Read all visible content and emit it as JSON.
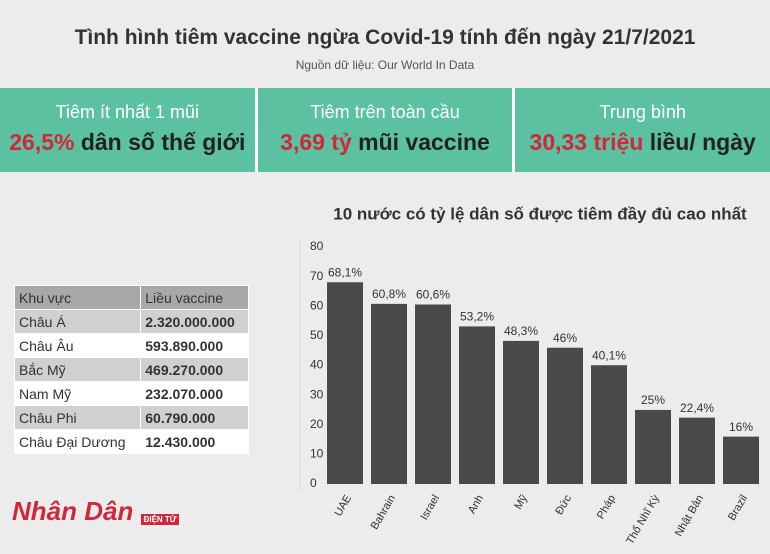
{
  "header": {
    "title": "Tình hình tiêm vaccine ngừa Covid-19 tính đến ngày 21/7/2021",
    "source": "Nguồn dữ liệu: Our World In Data"
  },
  "stats": [
    {
      "label": "Tiêm ít nhất 1 mũi",
      "highlight": "26,5%",
      "text": "dân số thế giới"
    },
    {
      "label": "Tiêm trên toàn cầu",
      "highlight": "3,69 tỷ",
      "text": "mũi vaccine"
    },
    {
      "label": "Trung bình",
      "highlight": "30,33 triệu",
      "text": "liều/ ngày"
    }
  ],
  "table": {
    "header": [
      "Khu vực",
      "Liều vaccine"
    ],
    "rows": [
      [
        "Châu Á",
        "2.320.000.000"
      ],
      [
        "Châu Âu",
        "593.890.000"
      ],
      [
        "Bắc Mỹ",
        "469.270.000"
      ],
      [
        "Nam Mỹ",
        "232.070.000"
      ],
      [
        "Châu Phi",
        "60.790.000"
      ],
      [
        "Châu Đại Dương",
        "12.430.000"
      ]
    ]
  },
  "logo": {
    "name": "Nhân Dân",
    "sub": "ĐIỆN TỬ"
  },
  "chart_data": {
    "type": "bar",
    "title": "10 nước có tỷ lệ dân số được tiêm đầy đủ cao nhất",
    "categories": [
      "UAE",
      "Bahrain",
      "Israel",
      "Anh",
      "Mỹ",
      "Đức",
      "Pháp",
      "Thổ Nhĩ Kỳ",
      "Nhật Bản",
      "Brazil"
    ],
    "values": [
      68.1,
      60.8,
      60.6,
      53.2,
      48.3,
      46,
      40.1,
      25,
      22.4,
      16
    ],
    "value_labels": [
      "68,1%",
      "60,8%",
      "60,6%",
      "53,2%",
      "48,3%",
      "46%",
      "40,1%",
      "25%",
      "22,4%",
      "16%"
    ],
    "color": "#4a4a4a",
    "ylim": [
      0,
      80
    ],
    "yticks": [
      0,
      10,
      20,
      30,
      40,
      50,
      60,
      70,
      80
    ],
    "grid": false
  }
}
